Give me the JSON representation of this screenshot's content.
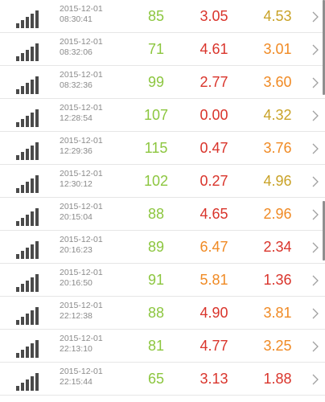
{
  "colors": {
    "green": "#8cc63f",
    "red": "#d9342b",
    "orange": "#f08a24",
    "olive": "#c9a227"
  },
  "rows": [
    {
      "date": "2015-12-01",
      "time": "08:30:41",
      "hr": "85",
      "hr_color": "green",
      "v1": "3.05",
      "v1_color": "red",
      "v2": "4.53",
      "v2_color": "olive"
    },
    {
      "date": "2015-12-01",
      "time": "08:32:06",
      "hr": "71",
      "hr_color": "green",
      "v1": "4.61",
      "v1_color": "red",
      "v2": "3.01",
      "v2_color": "orange"
    },
    {
      "date": "2015-12-01",
      "time": "08:32:36",
      "hr": "99",
      "hr_color": "green",
      "v1": "2.77",
      "v1_color": "red",
      "v2": "3.60",
      "v2_color": "orange"
    },
    {
      "date": "2015-12-01",
      "time": "12:28:54",
      "hr": "107",
      "hr_color": "green",
      "v1": "0.00",
      "v1_color": "red",
      "v2": "4.32",
      "v2_color": "olive"
    },
    {
      "date": "2015-12-01",
      "time": "12:29:36",
      "hr": "115",
      "hr_color": "green",
      "v1": "0.47",
      "v1_color": "red",
      "v2": "3.76",
      "v2_color": "orange"
    },
    {
      "date": "2015-12-01",
      "time": "12:30:12",
      "hr": "102",
      "hr_color": "green",
      "v1": "0.27",
      "v1_color": "red",
      "v2": "4.96",
      "v2_color": "olive"
    },
    {
      "date": "2015-12-01",
      "time": "20:15:04",
      "hr": "88",
      "hr_color": "green",
      "v1": "4.65",
      "v1_color": "red",
      "v2": "2.96",
      "v2_color": "orange"
    },
    {
      "date": "2015-12-01",
      "time": "20:16:23",
      "hr": "89",
      "hr_color": "green",
      "v1": "6.47",
      "v1_color": "orange",
      "v2": "2.34",
      "v2_color": "red"
    },
    {
      "date": "2015-12-01",
      "time": "20:16:50",
      "hr": "91",
      "hr_color": "green",
      "v1": "5.81",
      "v1_color": "orange",
      "v2": "1.36",
      "v2_color": "red"
    },
    {
      "date": "2015-12-01",
      "time": "22:12:38",
      "hr": "88",
      "hr_color": "green",
      "v1": "4.90",
      "v1_color": "red",
      "v2": "3.81",
      "v2_color": "orange"
    },
    {
      "date": "2015-12-01",
      "time": "22:13:10",
      "hr": "81",
      "hr_color": "green",
      "v1": "4.77",
      "v1_color": "red",
      "v2": "3.25",
      "v2_color": "orange"
    },
    {
      "date": "2015-12-01",
      "time": "22:15:44",
      "hr": "65",
      "hr_color": "green",
      "v1": "3.13",
      "v1_color": "red",
      "v2": "1.88",
      "v2_color": "red"
    }
  ],
  "icons": {
    "row_icon": "signal-strength-icon",
    "row_action": "chevron-right-icon"
  }
}
